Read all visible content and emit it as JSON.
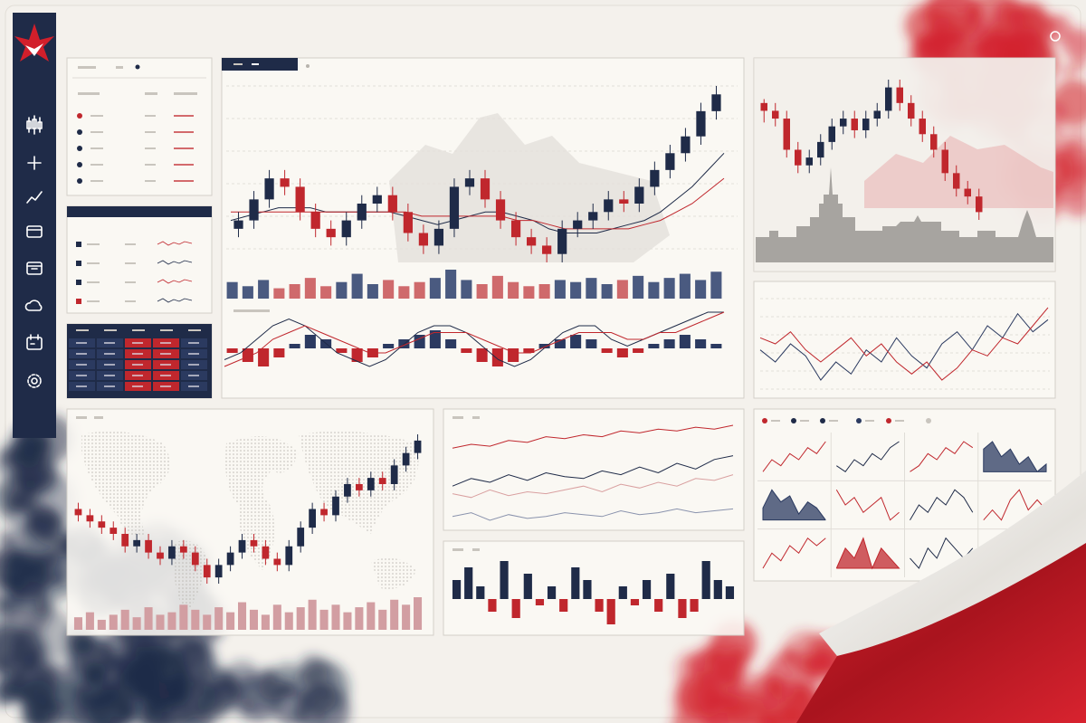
{
  "chart_data": [
    {
      "type": "candlestick",
      "up_color": "#1f2b48",
      "down_color": "#c0272d",
      "ohlc": [
        [
          48,
          52,
          46,
          50
        ],
        [
          50,
          57,
          48,
          55
        ],
        [
          55,
          62,
          53,
          60
        ],
        [
          60,
          62,
          56,
          58
        ],
        [
          58,
          60,
          50,
          52
        ],
        [
          52,
          54,
          46,
          48
        ],
        [
          48,
          50,
          44,
          46
        ],
        [
          46,
          52,
          44,
          50
        ],
        [
          50,
          56,
          48,
          54
        ],
        [
          54,
          58,
          52,
          56
        ],
        [
          56,
          58,
          50,
          52
        ],
        [
          52,
          54,
          45,
          47
        ],
        [
          47,
          49,
          42,
          44
        ],
        [
          44,
          50,
          42,
          48
        ],
        [
          48,
          60,
          46,
          58
        ],
        [
          58,
          62,
          56,
          60
        ],
        [
          60,
          62,
          53,
          55
        ],
        [
          55,
          57,
          48,
          50
        ],
        [
          50,
          52,
          44,
          46
        ],
        [
          46,
          48,
          42,
          44
        ],
        [
          44,
          46,
          40,
          42
        ],
        [
          42,
          50,
          40,
          48
        ],
        [
          48,
          52,
          46,
          50
        ],
        [
          50,
          54,
          48,
          52
        ],
        [
          52,
          57,
          50,
          55
        ],
        [
          55,
          57,
          52,
          54
        ],
        [
          54,
          60,
          52,
          58
        ],
        [
          58,
          64,
          56,
          62
        ],
        [
          62,
          68,
          60,
          66
        ],
        [
          66,
          72,
          64,
          70
        ],
        [
          70,
          78,
          68,
          76
        ],
        [
          76,
          82,
          74,
          80
        ]
      ],
      "series": [
        {
          "color": "#1f2b48",
          "values": [
            50,
            51,
            52,
            53,
            53,
            53,
            52,
            52,
            52,
            52,
            52,
            51,
            50,
            49,
            50,
            51,
            52,
            52,
            51,
            50,
            48,
            47,
            47,
            47,
            48,
            49,
            50,
            52,
            55,
            58,
            62,
            66
          ]
        },
        {
          "color": "#c0272d",
          "values": [
            52,
            52,
            52,
            52,
            52,
            52,
            52,
            52,
            52,
            52,
            52,
            52,
            51,
            51,
            51,
            51,
            51,
            51,
            50,
            50,
            49,
            48,
            48,
            48,
            48,
            48,
            49,
            50,
            52,
            54,
            57,
            60
          ]
        }
      ]
    },
    {
      "type": "bar",
      "values": [
        8,
        6,
        9,
        5,
        7,
        10,
        6,
        8,
        12,
        7,
        9,
        6,
        8,
        10,
        14,
        9,
        7,
        11,
        8,
        6,
        7,
        9,
        8,
        10,
        7,
        9,
        11,
        8,
        10,
        12,
        9,
        13
      ],
      "colors": [
        "#4a5a80",
        "#4a5a80",
        "#4a5a80",
        "#cf6a6c",
        "#cf6a6c",
        "#cf6a6c",
        "#cf6a6c",
        "#4a5a80",
        "#4a5a80",
        "#4a5a80",
        "#cf6a6c",
        "#cf6a6c",
        "#cf6a6c",
        "#4a5a80",
        "#4a5a80",
        "#4a5a80",
        "#cf6a6c",
        "#cf6a6c",
        "#cf6a6c",
        "#cf6a6c",
        "#cf6a6c",
        "#4a5a80",
        "#4a5a80",
        "#4a5a80",
        "#4a5a80",
        "#cf6a6c",
        "#4a5a80",
        "#4a5a80",
        "#4a5a80",
        "#4a5a80",
        "#4a5a80",
        "#4a5a80"
      ]
    },
    {
      "type": "bar",
      "color": "#2b3a60",
      "neg_color": "#c0272d",
      "values": [
        -1,
        -3,
        -4,
        -2,
        1,
        3,
        2,
        -1,
        -3,
        -2,
        1,
        2,
        3,
        4,
        2,
        -1,
        -3,
        -4,
        -3,
        -1,
        1,
        2,
        3,
        2,
        -1,
        -2,
        -1,
        1,
        2,
        3,
        2,
        1
      ]
    },
    {
      "type": "line",
      "series": [
        {
          "color": "#1f2b48",
          "values": [
            -2,
            -1,
            1,
            3,
            4,
            3,
            1,
            -1,
            -2,
            -3,
            -2,
            0,
            2,
            3,
            3,
            2,
            0,
            -2,
            -3,
            -2,
            0,
            2,
            3,
            3,
            1,
            0,
            1,
            2,
            3,
            4,
            5,
            5
          ]
        },
        {
          "color": "#c0272d",
          "values": [
            -3,
            -2,
            -1,
            1,
            2,
            3,
            2,
            1,
            0,
            -1,
            -1,
            0,
            1,
            2,
            2,
            2,
            1,
            0,
            -1,
            -1,
            0,
            1,
            2,
            2,
            2,
            1,
            1,
            2,
            2,
            3,
            4,
            5
          ]
        }
      ]
    },
    {
      "type": "candlestick",
      "up_color": "#1f2b48",
      "down_color": "#c0272d",
      "ohlc": [
        [
          62,
          63,
          57,
          60
        ],
        [
          60,
          62,
          56,
          58
        ],
        [
          58,
          60,
          48,
          50
        ],
        [
          50,
          52,
          44,
          46
        ],
        [
          46,
          50,
          44,
          48
        ],
        [
          48,
          54,
          46,
          52
        ],
        [
          52,
          58,
          50,
          56
        ],
        [
          56,
          60,
          54,
          58
        ],
        [
          58,
          60,
          53,
          55
        ],
        [
          55,
          60,
          53,
          58
        ],
        [
          58,
          62,
          56,
          60
        ],
        [
          60,
          68,
          58,
          66
        ],
        [
          66,
          68,
          60,
          62
        ],
        [
          62,
          64,
          56,
          58
        ],
        [
          58,
          60,
          52,
          54
        ],
        [
          54,
          56,
          48,
          50
        ],
        [
          50,
          52,
          42,
          44
        ],
        [
          44,
          46,
          38,
          40
        ],
        [
          40,
          42,
          36,
          38
        ],
        [
          38,
          40,
          32,
          34
        ]
      ]
    },
    {
      "type": "line",
      "series": [
        {
          "color": "#2b3a60",
          "values": [
            40,
            36,
            42,
            38,
            30,
            36,
            32,
            40,
            36,
            44,
            38,
            34,
            42,
            46,
            40,
            48,
            44,
            52,
            46,
            50
          ]
        },
        {
          "color": "#c0272d",
          "values": [
            44,
            42,
            46,
            40,
            36,
            40,
            44,
            38,
            42,
            36,
            32,
            36,
            30,
            34,
            40,
            38,
            44,
            42,
            48,
            54
          ]
        }
      ]
    },
    {
      "type": "candlestick",
      "up_color": "#1f2b48",
      "down_color": "#c0272d",
      "ohlc": [
        [
          52,
          54,
          48,
          50
        ],
        [
          50,
          52,
          46,
          48
        ],
        [
          48,
          50,
          44,
          46
        ],
        [
          46,
          48,
          42,
          44
        ],
        [
          44,
          46,
          38,
          40
        ],
        [
          40,
          44,
          38,
          42
        ],
        [
          42,
          44,
          36,
          38
        ],
        [
          38,
          40,
          34,
          36
        ],
        [
          36,
          42,
          34,
          40
        ],
        [
          40,
          42,
          36,
          38
        ],
        [
          38,
          40,
          32,
          34
        ],
        [
          34,
          36,
          28,
          30
        ],
        [
          30,
          36,
          28,
          34
        ],
        [
          34,
          40,
          32,
          38
        ],
        [
          38,
          44,
          36,
          42
        ],
        [
          42,
          44,
          38,
          40
        ],
        [
          40,
          42,
          34,
          36
        ],
        [
          36,
          38,
          32,
          34
        ],
        [
          34,
          42,
          32,
          40
        ],
        [
          40,
          48,
          38,
          46
        ],
        [
          46,
          54,
          44,
          52
        ],
        [
          52,
          54,
          48,
          50
        ],
        [
          50,
          58,
          48,
          56
        ],
        [
          56,
          62,
          54,
          60
        ],
        [
          60,
          62,
          56,
          58
        ],
        [
          58,
          64,
          56,
          62
        ],
        [
          62,
          64,
          58,
          60
        ],
        [
          60,
          68,
          58,
          66
        ],
        [
          66,
          72,
          64,
          70
        ],
        [
          70,
          76,
          68,
          74
        ]
      ]
    },
    {
      "type": "bar",
      "color": "#d29ea2",
      "values": [
        5,
        7,
        4,
        6,
        8,
        5,
        9,
        6,
        7,
        10,
        8,
        6,
        9,
        7,
        11,
        8,
        6,
        10,
        7,
        9,
        12,
        8,
        10,
        7,
        9,
        11,
        8,
        12,
        10,
        13
      ]
    },
    {
      "type": "line",
      "series": [
        {
          "color": "#c0272d",
          "values": [
            60,
            62,
            61,
            64,
            63,
            66,
            65,
            67,
            66,
            69,
            68,
            70,
            69,
            71,
            70,
            72
          ]
        },
        {
          "color": "#1f2b48",
          "values": [
            40,
            44,
            42,
            46,
            43,
            47,
            45,
            44,
            48,
            46,
            50,
            47,
            52,
            49,
            54,
            56
          ]
        },
        {
          "color": "#d9a0a0",
          "values": [
            36,
            34,
            38,
            35,
            37,
            36,
            38,
            40,
            37,
            41,
            39,
            42,
            40,
            44,
            43,
            46
          ]
        },
        {
          "color": "#8a93ad",
          "values": [
            24,
            26,
            22,
            25,
            23,
            24,
            26,
            25,
            24,
            27,
            25,
            26,
            28,
            26,
            27,
            28
          ]
        }
      ]
    },
    {
      "type": "bar",
      "color": "#1f2b48",
      "neg_color": "#c0272d",
      "values": [
        3,
        5,
        2,
        -2,
        6,
        -3,
        4,
        -1,
        2,
        -2,
        5,
        3,
        -2,
        -4,
        2,
        -1,
        3,
        -2,
        4,
        -3,
        -2,
        6,
        3,
        2
      ]
    },
    {
      "type": "small-multiples",
      "series": [
        {
          "color": "#c0272d",
          "fill": false,
          "values": [
            2,
            4,
            3,
            5,
            4,
            6,
            5,
            7
          ]
        },
        {
          "color": "#1f2b48",
          "fill": false,
          "values": [
            3,
            2,
            4,
            3,
            5,
            4,
            6,
            7
          ]
        },
        {
          "color": "#c0272d",
          "fill": false,
          "values": [
            2,
            3,
            5,
            4,
            6,
            5,
            7,
            6
          ]
        },
        {
          "color": "#2b3a60",
          "fill": true,
          "values": [
            6,
            7,
            5,
            6,
            4,
            5,
            3,
            4
          ]
        },
        {
          "color": "#2b3a60",
          "fill": true,
          "values": [
            4,
            7,
            5,
            6,
            3,
            5,
            4,
            2
          ]
        },
        {
          "color": "#c0272d",
          "fill": false,
          "values": [
            6,
            4,
            5,
            3,
            4,
            5,
            2,
            3
          ]
        },
        {
          "color": "#1f2b48",
          "fill": false,
          "values": [
            3,
            5,
            4,
            6,
            5,
            7,
            6,
            4
          ]
        },
        {
          "color": "#c0272d",
          "fill": false,
          "values": [
            2,
            3,
            2,
            4,
            5,
            3,
            4,
            3
          ]
        },
        {
          "color": "#c0272d",
          "fill": false,
          "values": [
            2,
            4,
            3,
            5,
            4,
            6,
            5,
            6
          ]
        },
        {
          "color": "#c0272d",
          "fill": true,
          "values": [
            3,
            5,
            4,
            6,
            3,
            5,
            4,
            3
          ]
        },
        {
          "color": "#1f2b48",
          "fill": false,
          "values": [
            4,
            3,
            5,
            4,
            6,
            5,
            4,
            5
          ]
        },
        {
          "color": "#c0272d",
          "fill": false,
          "values": [
            3,
            4,
            3,
            5,
            4,
            5,
            6,
            5
          ]
        }
      ]
    }
  ]
}
